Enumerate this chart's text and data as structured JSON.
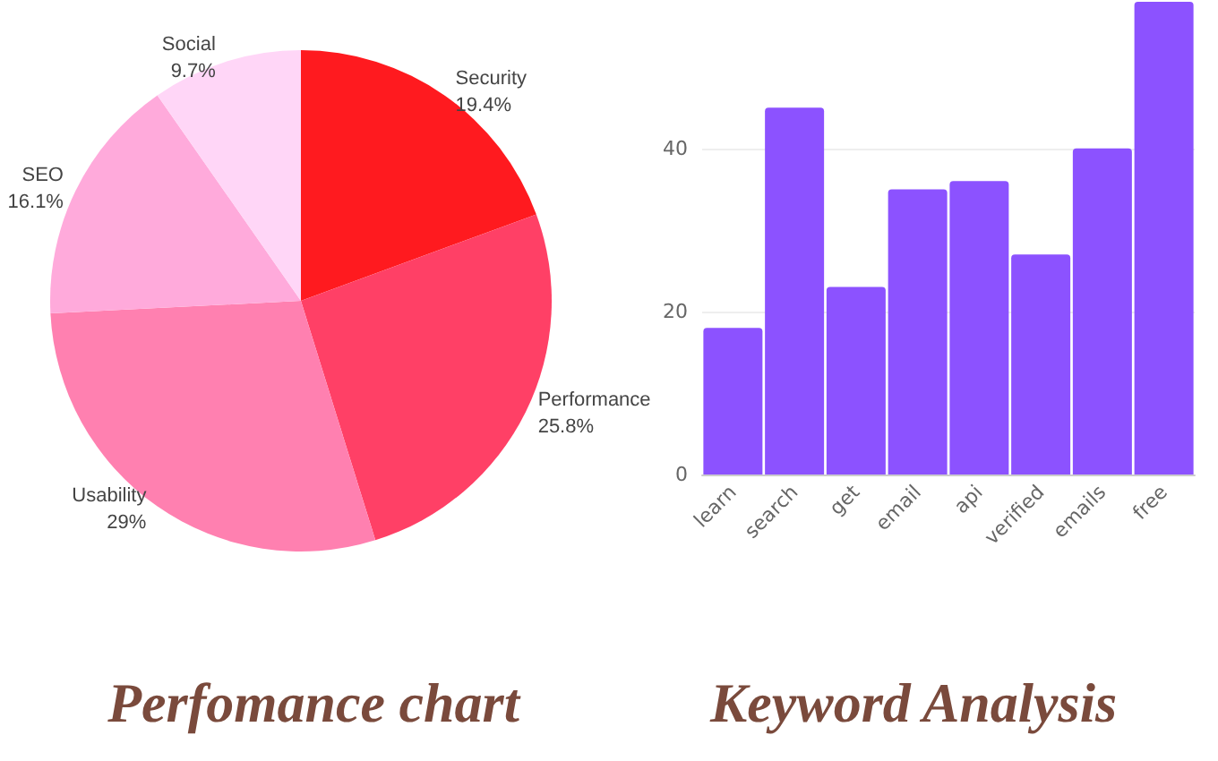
{
  "chart_data": [
    {
      "type": "pie",
      "title": "Perfomance chart",
      "categories": [
        "Security",
        "Performance",
        "Usability",
        "SEO",
        "Social"
      ],
      "values": [
        19.4,
        25.8,
        29,
        16.1,
        9.7
      ],
      "colors": [
        "#ff1a1f",
        "#ff4066",
        "#ff80b0",
        "#ffaadb",
        "#ffd6f7"
      ],
      "value_labels": [
        "19.4%",
        "25.8%",
        "29%",
        "16.1%",
        "9.7%"
      ],
      "legend": false
    },
    {
      "type": "bar",
      "title": "Keyword Analysis",
      "categories": [
        "learn",
        "search",
        "get",
        "email",
        "api",
        "verified",
        "emails",
        "free"
      ],
      "values": [
        18,
        45,
        23,
        35,
        36,
        27,
        40,
        58
      ],
      "color": "#8c52ff",
      "ylim": [
        0,
        58
      ],
      "yticks": [
        0,
        20,
        40
      ],
      "grid": "y",
      "legend": false
    }
  ]
}
